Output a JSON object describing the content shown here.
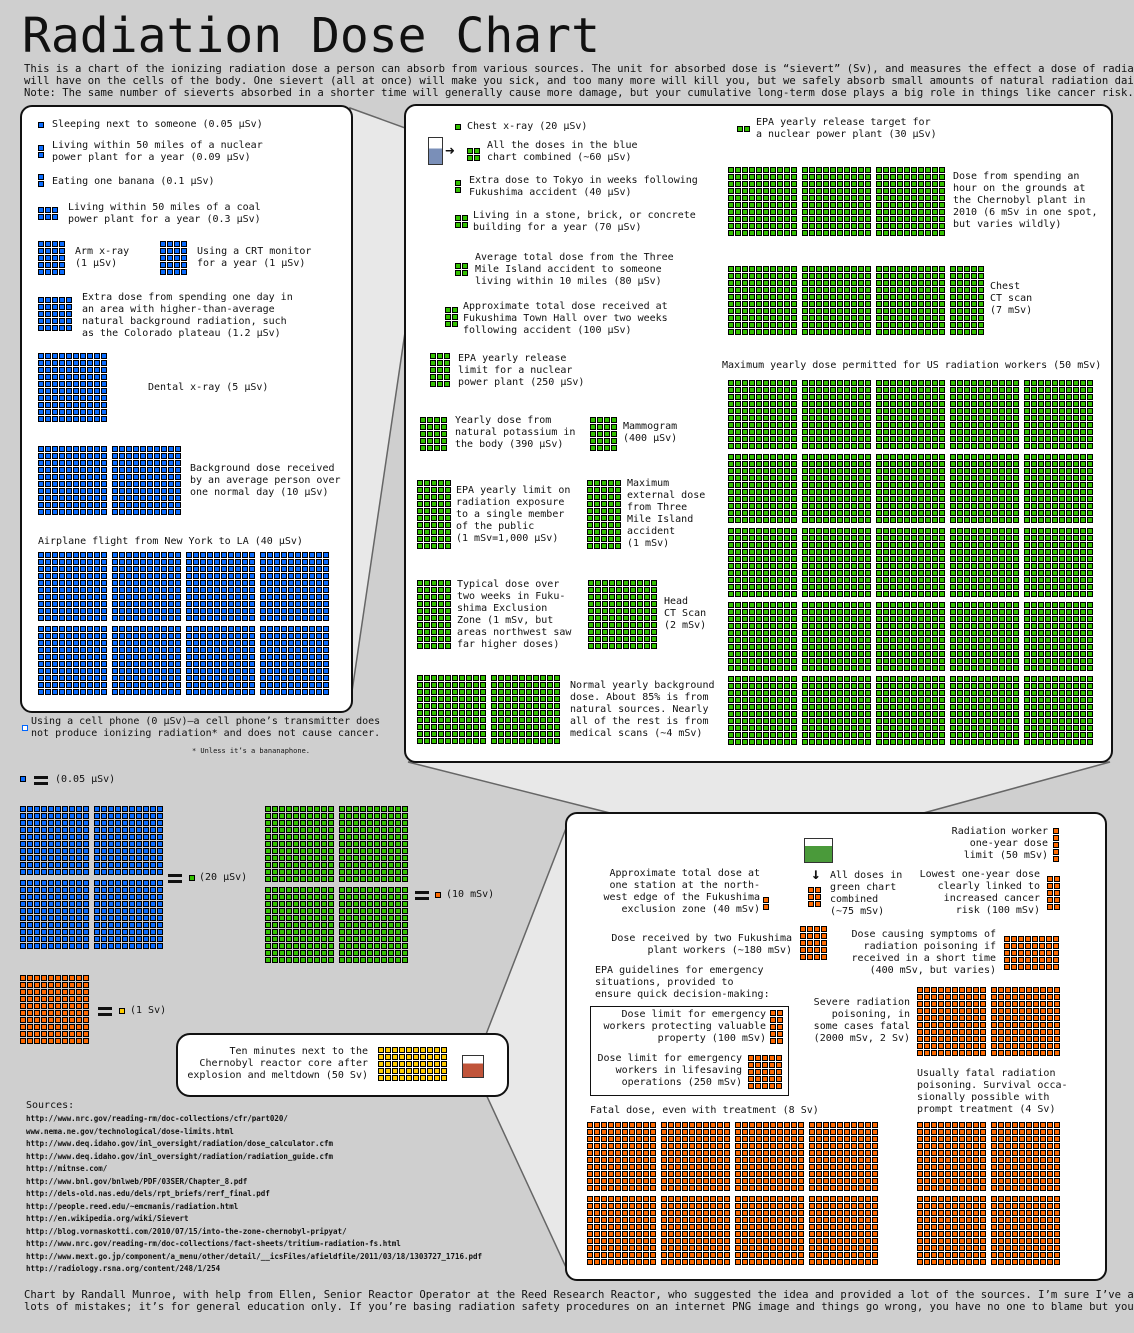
{
  "title": "Radiation Dose Chart",
  "intro": [
    "This is a chart of the ionizing radiation dose a person can absorb from various sources. The unit for absorbed dose is “sievert” (Sv), and measures the effect a dose of radiation",
    "will have on the cells of the body. One sievert (all at once) will make you sick, and too many more will kill you, but we safely absorb small amounts of natural radiation daily.",
    "Note: The same number of sieverts absorbed in a shorter time will generally cause more damage, but your cumulative long-term dose plays a big role in things like cancer risk."
  ],
  "colors": {
    "blue": "#0a6cff",
    "green": "#33c100",
    "orange": "#ff6a00",
    "yellow": "#ffcc00",
    "background": "#cfcfcf"
  },
  "blue_panel": {
    "items": [
      "Sleeping next to someone (0.05 μSv)",
      "Living within 50 miles of a nuclear\npower plant for a year (0.09 μSv)",
      "Eating one banana (0.1 μSv)",
      "Living within 50 miles of a coal\npower plant for a year (0.3 μSv)",
      "Arm x-ray\n(1 μSv)",
      "Using a CRT monitor\nfor a year (1 μSv)",
      "Extra dose from spending one day in\nan area with higher-than-average\nnatural background radiation, such\nas the Colorado plateau (1.2 μSv)",
      "Dental x-ray (5 μSv)",
      "Background dose received\nby an average person over\none normal day (10 μSv)",
      "Airplane flight from New York to LA (40 μSv)"
    ],
    "cell_phone": "Using a cell phone (0 μSv)—a cell phone’s transmitter does\nnot produce ionizing radiation* and does not cause cancer.",
    "footnote": "* Unless it’s a bananaphone."
  },
  "green_panel": {
    "items": [
      "Chest x-ray (20 μSv)",
      "All the doses in the blue\nchart combined (~60 μSv)",
      "Extra dose to Tokyo in weeks following\nFukushima accident (40 μSv)",
      "Living in a stone, brick, or concrete\nbuilding for a year (70 μSv)",
      "Average total dose from the Three\nMile Island accident to someone\nliving within 10 miles (80 μSv)",
      "Approximate total dose received at\nFukushima Town Hall over two weeks\nfollowing accident (100 μSv)",
      "EPA yearly release\nlimit for a nuclear\npower plant (250 μSv)",
      "Yearly dose from\nnatural potassium in\nthe body (390 μSv)",
      "Mammogram\n(400 μSv)",
      "EPA yearly limit on\nradiation exposure\nto a single member\nof the public\n(1 mSv=1,000 μSv)",
      "Maximum\nexternal dose\nfrom Three\nMile Island\naccident\n(1 mSv)",
      "Typical dose over\ntwo weeks in Fuku-\nshima Exclusion\nZone (1 mSv, but\nareas northwest saw\nfar higher doses)",
      "Head\nCT Scan\n(2 mSv)",
      "Normal yearly background\ndose. About 85% is from\nnatural sources. Nearly\nall of the rest is from\nmedical scans (~4 mSv)",
      "EPA yearly release target for\na nuclear power plant (30 μSv)",
      "Dose from spending an\nhour on the grounds at\nthe Chernobyl plant in\n2010 (6 mSv in one spot,\nbut varies wildly)",
      "Chest\nCT scan\n(7 mSv)",
      "Maximum yearly dose permitted for US radiation workers (50 mSv)"
    ]
  },
  "legend": {
    "blue_unit": "(0.05 μSv)",
    "green_unit": "(20 μSv)",
    "orange_unit": "(10 mSv)",
    "yellow_unit": "(1 Sv)"
  },
  "chernobyl": "Ten minutes next to the\nChernobyl reactor core after\nexplosion and meltdown (50 Sv)",
  "orange_panel": {
    "items": [
      "Radiation worker\none-year dose\nlimit (50 mSv)",
      "All doses in\ngreen chart\ncombined\n(~75 mSv)",
      "Approximate total dose at\none station at the north-\nwest edge of the Fukushima\nexclusion zone (40 mSv)",
      "Lowest one-year dose\nclearly linked to\nincreased cancer\nrisk (100 mSv)",
      "Dose received by two Fukushima\nplant workers (~180 mSv)",
      "Dose causing symptoms of\nradiation poisoning if\nreceived in a short time\n(400 mSv, but varies)",
      "EPA guidelines for emergency\nsituations, provided to\nensure quick decision-making:",
      "Dose limit for emergency\nworkers protecting valuable\nproperty (100 mSv)",
      "Dose limit for emergency\nworkers in lifesaving\noperations (250 mSv)",
      "Severe radiation\npoisoning, in\nsome cases fatal\n(2000 mSv, 2 Sv)",
      "Usually fatal radiation\npoisoning. Survival occa-\nsionally possible with\nprompt treatment (4 Sv)",
      "Fatal dose, even with treatment (8 Sv)"
    ]
  },
  "sources": {
    "label": "Sources:",
    "links": [
      "http://www.nrc.gov/reading-rm/doc-collections/cfr/part020/",
      "www.nema.ne.gov/technological/dose-limits.html",
      "http://www.deq.idaho.gov/inl_oversight/radiation/dose_calculator.cfm",
      "http://www.deq.idaho.gov/inl_oversight/radiation/radiation_guide.cfm",
      "http://mitnse.com/",
      "http://www.bnl.gov/bnlweb/PDF/03SER/Chapter_8.pdf",
      "http://dels-old.nas.edu/dels/rpt_briefs/rerf_final.pdf",
      "http://people.reed.edu/~emcmanis/radiation.html",
      "http://en.wikipedia.org/wiki/Sievert",
      "http://blog.vornaskotti.com/2010/07/15/into-the-zone-chernobyl-pripyat/",
      "http://www.nrc.gov/reading-rm/doc-collections/fact-sheets/tritium-radiation-fs.html",
      "http://www.mext.go.jp/component/a_menu/other/detail/__icsFiles/afieldfile/2011/03/18/1303727_1716.pdf",
      "http://radiology.rsna.org/content/248/1/254"
    ]
  },
  "footer": [
    "Chart by Randall Munroe, with help from Ellen, Senior Reactor Operator at the Reed Research Reactor, who suggested the idea and provided a lot of the sources. I’m sure I’ve added in",
    "lots of mistakes; it’s for general education only. If you’re basing radiation safety procedures on an internet PNG image and things go wrong, you have no one to blame but yourself."
  ]
}
